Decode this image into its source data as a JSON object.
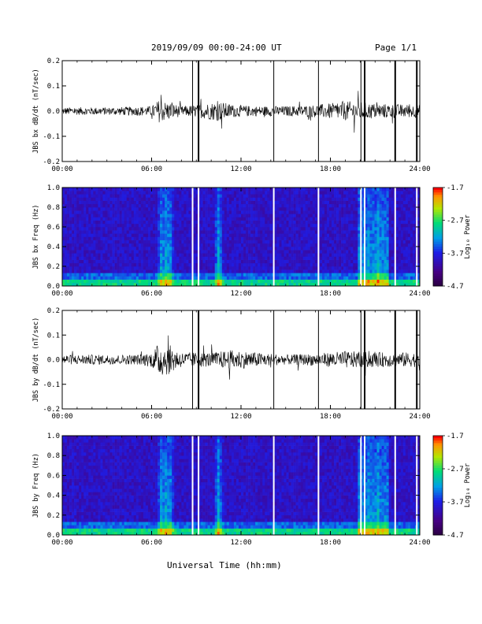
{
  "header": {
    "title": "2019/09/09  00:00-24:00 UT",
    "page": "Page 1/1"
  },
  "xlabel": "Universal Time (hh:mm)",
  "chart_data": [
    {
      "type": "line",
      "ylabel": "JBS bx dB/dt (nT/sec)",
      "xlim": [
        "00:00",
        "24:00"
      ],
      "ylim": [
        -0.2,
        0.2
      ],
      "x_ticks": [
        "00:00",
        "06:00",
        "12:00",
        "18:00",
        "24:00"
      ],
      "y_ticks": [
        "-0.2",
        "-0.1",
        "0.0",
        "0.1",
        "0.2"
      ],
      "vertical_lines_hours": [
        8.75,
        9.15,
        14.2,
        17.2,
        20.05,
        20.3,
        22.35,
        23.8
      ],
      "envelope": [
        [
          0,
          0.015
        ],
        [
          3,
          0.015
        ],
        [
          6,
          0.02
        ],
        [
          6.5,
          0.045
        ],
        [
          7.2,
          0.035
        ],
        [
          8,
          0.02
        ],
        [
          9,
          0.025
        ],
        [
          10.5,
          0.04
        ],
        [
          11.5,
          0.025
        ],
        [
          13,
          0.02
        ],
        [
          15,
          0.02
        ],
        [
          17,
          0.025
        ],
        [
          19.5,
          0.04
        ],
        [
          21,
          0.03
        ],
        [
          24,
          0.025
        ]
      ],
      "color": "#000000"
    },
    {
      "type": "heatmap",
      "ylabel": "JBS bx Freq (Hz)",
      "xlim": [
        "00:00",
        "24:00"
      ],
      "ylim": [
        0.0,
        1.0
      ],
      "x_ticks": [
        "00:00",
        "06:00",
        "12:00",
        "18:00",
        "24:00"
      ],
      "y_ticks": [
        "0.0",
        "0.2",
        "0.4",
        "0.6",
        "0.8",
        "1.0"
      ],
      "colorbar": {
        "label": "Log₁₀ Power",
        "ticks": [
          "-1.7",
          "-2.7",
          "-3.7",
          "-4.7"
        ],
        "range": [
          -4.7,
          -1.7
        ]
      },
      "gaps_hours": [
        8.75,
        9.15,
        14.2,
        17.2,
        20.05,
        20.3,
        22.35,
        23.8
      ],
      "bright_bands_hours": [
        6.7,
        7.0,
        7.2,
        10.5,
        20.6,
        21.2
      ]
    },
    {
      "type": "line",
      "ylabel": "JBS by dB/dt (nT/sec)",
      "xlim": [
        "00:00",
        "24:00"
      ],
      "ylim": [
        -0.2,
        0.2
      ],
      "x_ticks": [
        "00:00",
        "06:00",
        "12:00",
        "18:00",
        "24:00"
      ],
      "y_ticks": [
        "-0.2",
        "-0.1",
        "0.0",
        "0.1",
        "0.2"
      ],
      "vertical_lines_hours": [
        8.75,
        9.15,
        14.2,
        17.2,
        20.05,
        20.3,
        22.35,
        23.8
      ],
      "envelope": [
        [
          0,
          0.02
        ],
        [
          5,
          0.02
        ],
        [
          6,
          0.03
        ],
        [
          6.5,
          0.07
        ],
        [
          7.2,
          0.06
        ],
        [
          8,
          0.03
        ],
        [
          10,
          0.03
        ],
        [
          11.5,
          0.04
        ],
        [
          13,
          0.03
        ],
        [
          15,
          0.02
        ],
        [
          17,
          0.025
        ],
        [
          19,
          0.035
        ],
        [
          21,
          0.03
        ],
        [
          24,
          0.03
        ]
      ],
      "color": "#000000"
    },
    {
      "type": "heatmap",
      "ylabel": "JBS by Freq (Hz)",
      "xlim": [
        "00:00",
        "24:00"
      ],
      "ylim": [
        0.0,
        1.0
      ],
      "x_ticks": [
        "00:00",
        "06:00",
        "12:00",
        "18:00",
        "24:00"
      ],
      "y_ticks": [
        "0.0",
        "0.2",
        "0.4",
        "0.6",
        "0.8",
        "1.0"
      ],
      "colorbar": {
        "label": "Log₁₀ Power",
        "ticks": [
          "-1.7",
          "-2.7",
          "-3.7",
          "-4.7"
        ],
        "range": [
          -4.7,
          -1.7
        ]
      },
      "gaps_hours": [
        8.75,
        9.15,
        14.2,
        17.2,
        20.05,
        20.3,
        22.35,
        23.8
      ],
      "bright_bands_hours": [
        6.7,
        7.0,
        7.2,
        10.5,
        20.6,
        21.2
      ]
    }
  ]
}
